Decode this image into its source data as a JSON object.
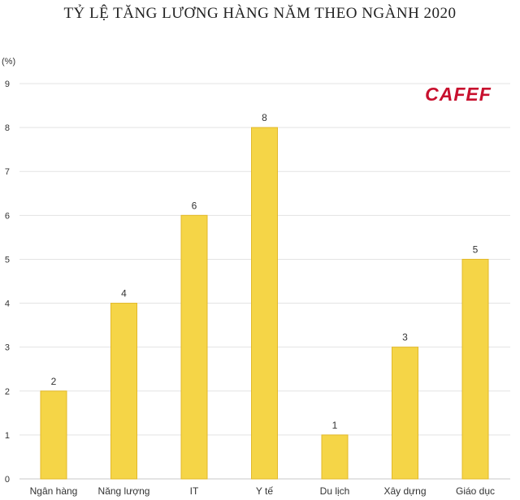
{
  "chart_data": {
    "type": "bar",
    "title": "TỶ LỆ TĂNG LƯƠNG HÀNG NĂM THEO NGÀNH 2020",
    "unit_label": "(%)",
    "categories": [
      "Ngân hàng",
      "Năng lượng",
      "IT",
      "Y tế",
      "Du lịch",
      "Xây dựng",
      "Giáo dục"
    ],
    "values": [
      2,
      4,
      6,
      8,
      1,
      3,
      5
    ],
    "data_labels": [
      "2",
      "4",
      "6",
      "8",
      "1",
      "3",
      "5"
    ],
    "ylim": [
      0,
      9
    ],
    "yticks": [
      "0",
      "1",
      "2",
      "3",
      "4",
      "5",
      "6",
      "7",
      "8",
      "9"
    ],
    "grid": true,
    "bar_color": "#f5d547",
    "bar_edge_color": "#e2b92a"
  },
  "logo": {
    "text": "CAFEF",
    "color": "#c8102e"
  }
}
